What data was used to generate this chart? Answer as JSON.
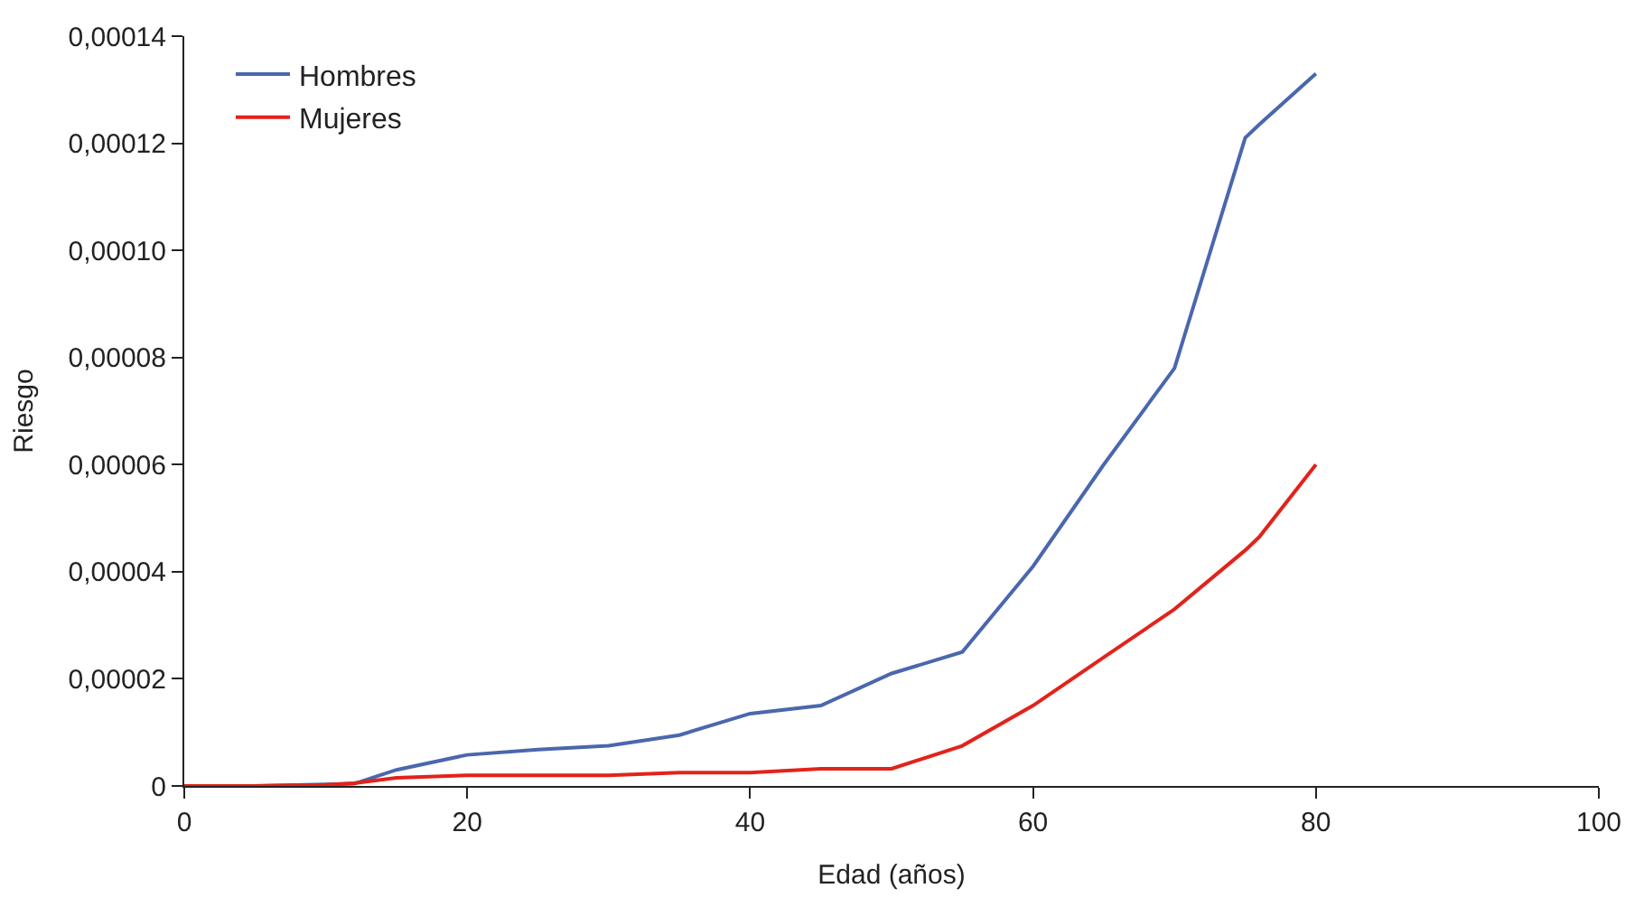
{
  "chart_data": {
    "type": "line",
    "xlabel": "Edad (años)",
    "ylabel": "Riesgo",
    "xlim": [
      0,
      100
    ],
    "xticks": [
      0,
      20,
      40,
      60,
      80,
      100
    ],
    "ylim": [
      0,
      0.00014
    ],
    "yticks": [
      0,
      {
        "value": 2e-05,
        "label": "0,00002"
      },
      {
        "value": 4e-05,
        "label": "0,00004"
      },
      {
        "value": 6e-05,
        "label": "0,00006"
      },
      {
        "value": 8e-05,
        "label": "0,00008"
      },
      {
        "value": 0.0001,
        "label": "0,00010"
      },
      {
        "value": 0.00012,
        "label": "0,00012"
      },
      {
        "value": 0.00014,
        "label": "0,00014"
      }
    ],
    "x": [
      0,
      5,
      10,
      12,
      15,
      20,
      25,
      30,
      35,
      40,
      45,
      50,
      55,
      60,
      65,
      70,
      75,
      76,
      80
    ],
    "series": [
      {
        "name": "Hombres",
        "color": "#4a67ae",
        "values": [
          0,
          0,
          3e-07,
          4e-07,
          3e-06,
          5.8e-06,
          6.8e-06,
          7.5e-06,
          9.5e-06,
          1.35e-05,
          1.5e-05,
          2.1e-05,
          2.5e-05,
          4.1e-05,
          6e-05,
          7.8e-05,
          0.000121,
          0.0001235,
          0.000133
        ]
      },
      {
        "name": "Mujeres",
        "color": "#e2231a",
        "values": [
          0,
          0,
          2e-07,
          5e-07,
          1.5e-06,
          2e-06,
          2e-06,
          2e-06,
          2.5e-06,
          2.5e-06,
          3.2e-06,
          3.2e-06,
          7.5e-06,
          1.5e-05,
          2.4e-05,
          3.3e-05,
          4.4e-05,
          4.65e-05,
          6e-05
        ]
      }
    ],
    "grid": false,
    "legend": "top left",
    "marker": "none",
    "line_style": "solid"
  }
}
